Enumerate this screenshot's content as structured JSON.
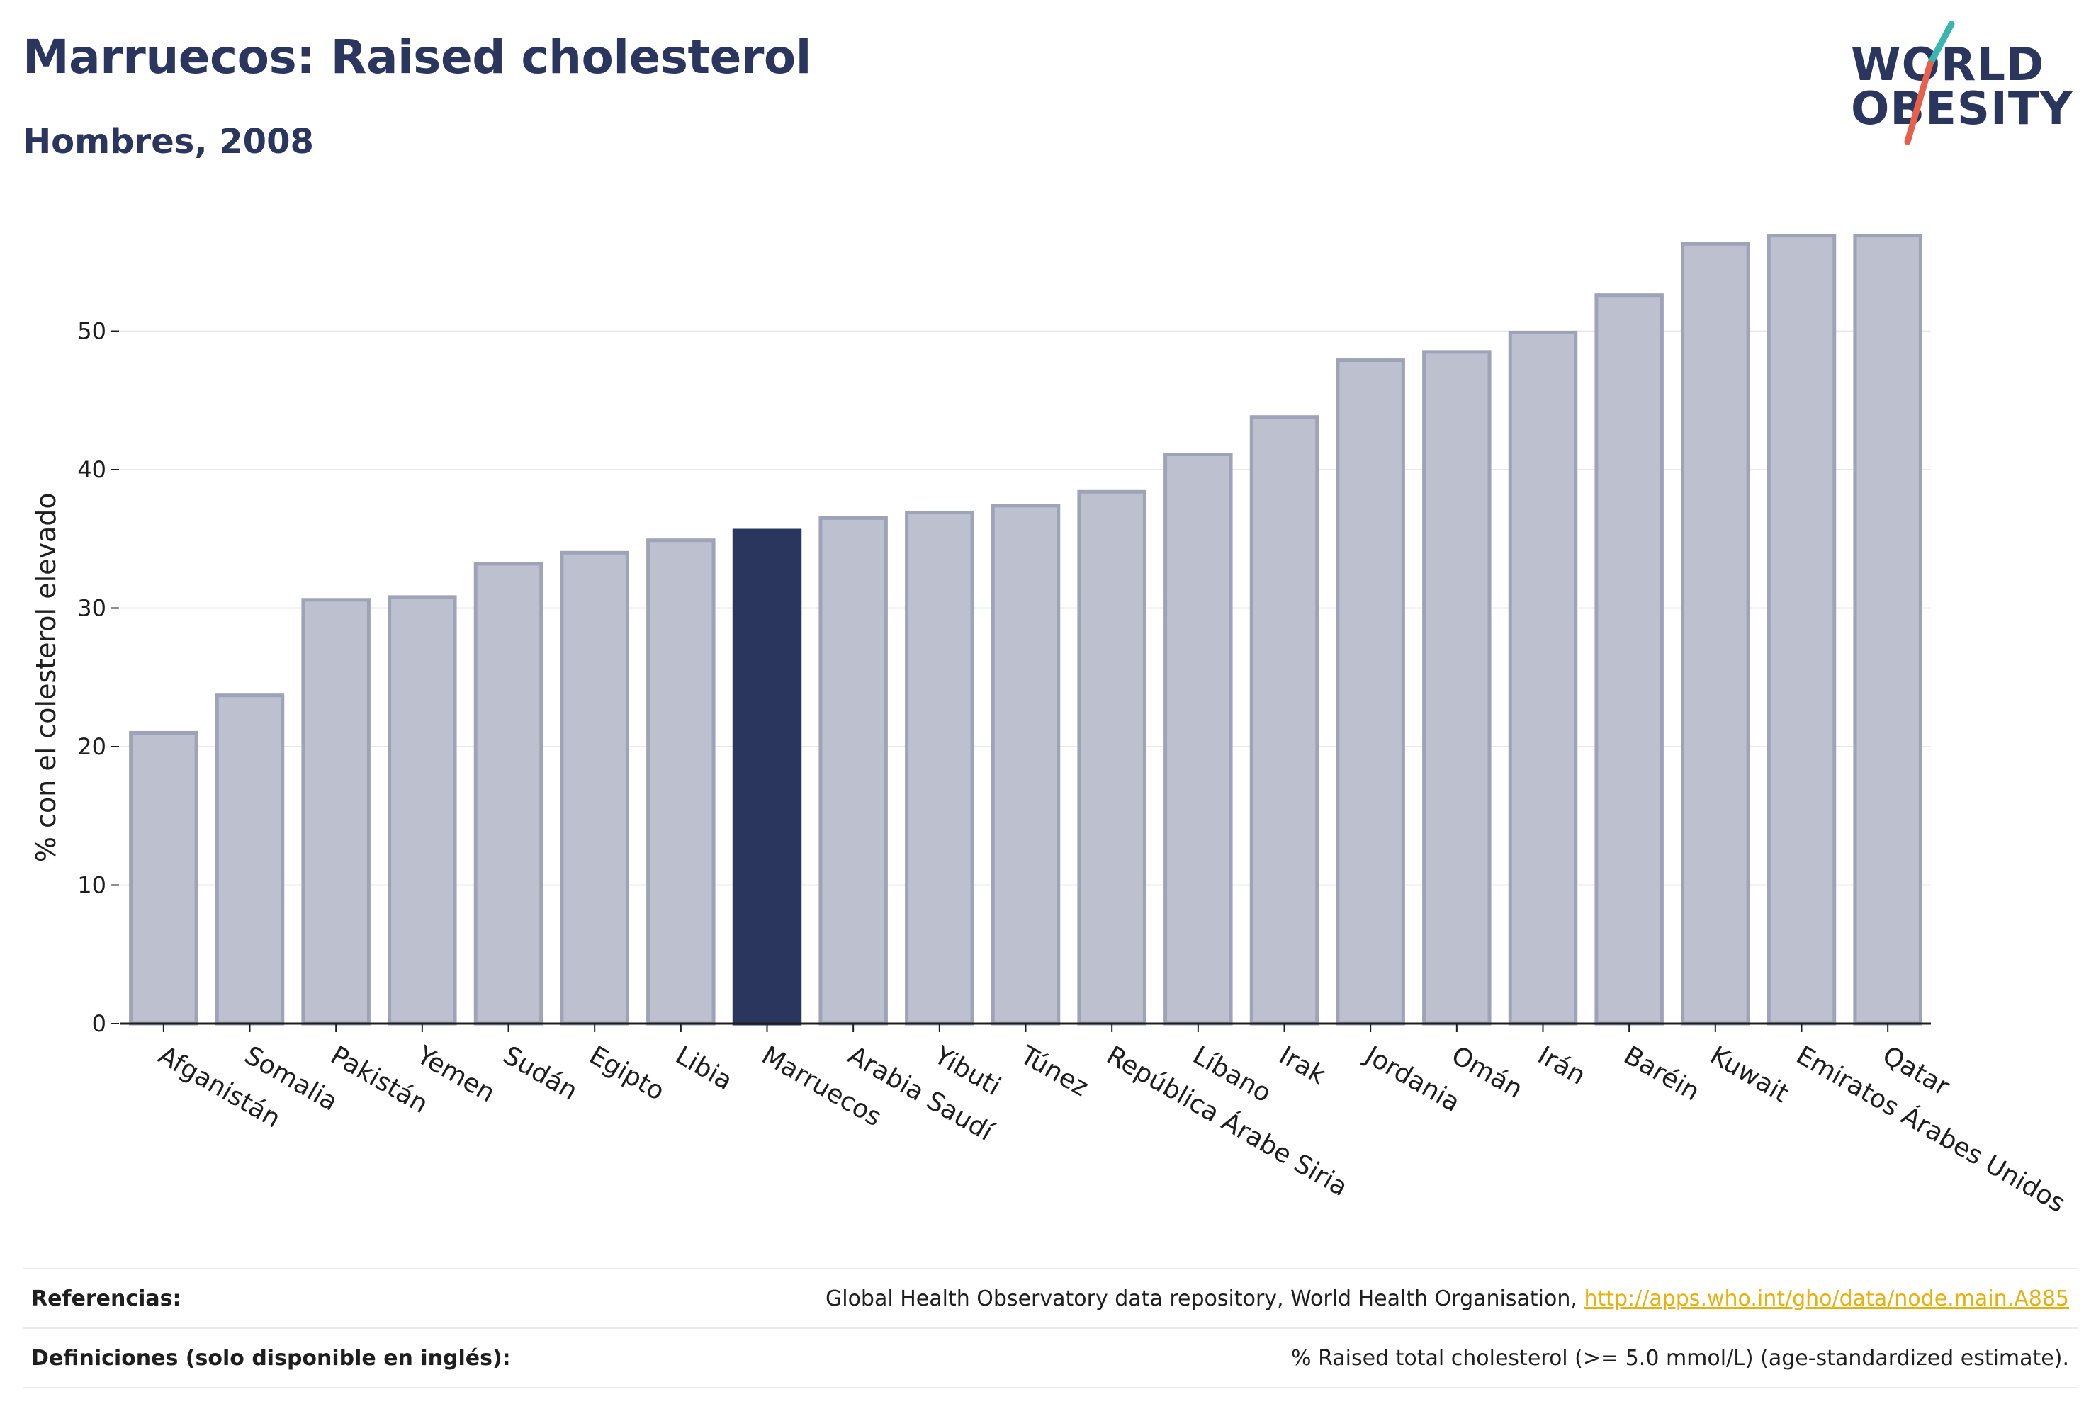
{
  "header": {
    "title": "Marruecos: Raised cholesterol",
    "subtitle": "Hombres, 2008"
  },
  "logo": {
    "line1": "WORLD",
    "line2": "OBESITY",
    "colors": {
      "text": "#2b365f",
      "slash_top": "#3ab6b0",
      "slash_bottom": "#e8604c"
    }
  },
  "colors": {
    "bar": "#bcc0cf",
    "bar_border": "#9ea3b8",
    "highlight": "#2b365f",
    "grid": "#e6e8ee",
    "link": "#e8b00e"
  },
  "chart_data": {
    "type": "bar",
    "ylabel": "% con el colesterol elevado",
    "ylim": [
      0,
      60
    ],
    "yticks": [
      0,
      10,
      20,
      30,
      40,
      50
    ],
    "grid": true,
    "highlight": "Marruecos",
    "categories": [
      "Afganistán",
      "Somalia",
      "Pakistán",
      "Yemen",
      "Sudán",
      "Egipto",
      "Libia",
      "Marruecos",
      "Arabia Saudí",
      "Yibuti",
      "Túnez",
      "República Árabe Siria",
      "Líbano",
      "Irak",
      "Jordania",
      "Omán",
      "Irán",
      "Baréin",
      "Kuwait",
      "Emiratos Árabes Unidos",
      "Qatar"
    ],
    "values": [
      21.0,
      23.7,
      30.6,
      30.8,
      33.2,
      34.0,
      34.9,
      35.6,
      36.5,
      36.9,
      37.4,
      38.4,
      41.1,
      43.8,
      47.9,
      48.5,
      49.9,
      52.6,
      56.3,
      56.9,
      56.9
    ]
  },
  "footer": {
    "references_label": "Referencias:",
    "references_text": "Global Health Observatory data repository, World Health Organisation,",
    "references_link": "http://apps.who.int/gho/data/node.main.A885",
    "definitions_label": "Definiciones (solo disponible en inglés):",
    "definitions_text": "% Raised total cholesterol (>= 5.0 mmol/L) (age-standardized estimate)."
  }
}
